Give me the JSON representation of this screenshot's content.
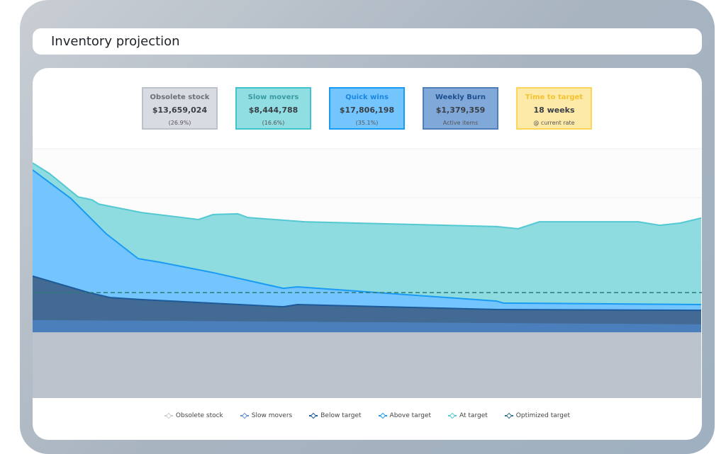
{
  "title": "Inventory projection",
  "kpis": [
    {
      "title": "Obsolete stock",
      "value": "$13,659,024",
      "sub": "(26.9%)",
      "bg": "#d8dbe1",
      "border": "#bcc2cb",
      "tcolor": "#6b7078"
    },
    {
      "title": "Slow movers",
      "value": "$8,444,788",
      "sub": "(16.6%)",
      "bg": "#90dde2",
      "border": "#3fc3cc",
      "tcolor": "#3a9aa3"
    },
    {
      "title": "Quick wins",
      "value": "$17,806,198",
      "sub": "(35.1%)",
      "bg": "#74c4fd",
      "border": "#1a9bf3",
      "tcolor": "#1a86e0"
    },
    {
      "title": "Weekly Burn",
      "value": "$1,379,359",
      "sub": "Active items",
      "bg": "#80a8d8",
      "border": "#4f7fb8",
      "tcolor": "#1d4f8f"
    },
    {
      "title": "Time to target",
      "value": "18 weeks",
      "sub": "@ current rate",
      "bg": "#fde9a8",
      "border": "#fbd65a",
      "tcolor": "#f3c230"
    }
  ],
  "chart_data": {
    "type": "area",
    "xlim": [
      0,
      100
    ],
    "ylim": [
      0,
      100
    ],
    "target_line": 42.3,
    "series": [
      {
        "name": "Obsolete stock",
        "color": "#bdc3cc",
        "line": "#bdc3cc",
        "legend": "#c9ccd1",
        "points": [
          [
            0,
            26.1
          ],
          [
            100,
            26.1
          ]
        ]
      },
      {
        "name": "Slow movers",
        "color": "#4b7fbb",
        "line": "#4b7fbb",
        "legend": "#5b8fd0",
        "points": [
          [
            0,
            31
          ],
          [
            30,
            30.5
          ],
          [
            70,
            29.8
          ],
          [
            100,
            29.3
          ]
        ]
      },
      {
        "name": "Below target",
        "color": "#426a93",
        "line": "#1d5a9a",
        "legend": "#1d5a9a",
        "points": [
          [
            0,
            48.9
          ],
          [
            8.4,
            42.3
          ],
          [
            11.6,
            40.3
          ],
          [
            16.3,
            39.5
          ],
          [
            37.5,
            36.6
          ],
          [
            39.6,
            37.5
          ],
          [
            69.4,
            35.5
          ],
          [
            100,
            35.2
          ]
        ]
      },
      {
        "name": "Above target",
        "color": "#74c4fd",
        "line": "#1a9bf3",
        "legend": "#1a9bf3",
        "points": [
          [
            0,
            91.5
          ],
          [
            5.7,
            80.1
          ],
          [
            11,
            65.9
          ],
          [
            15.8,
            55.9
          ],
          [
            19,
            54.5
          ],
          [
            27,
            50.3
          ],
          [
            37.5,
            44
          ],
          [
            39.6,
            44.6
          ],
          [
            69.4,
            38.9
          ],
          [
            70.4,
            38.1
          ],
          [
            100,
            37.5
          ]
        ]
      },
      {
        "name": "At target",
        "color": "#8edbe0",
        "line": "#54c9d2",
        "legend": "#54c9d2",
        "points": [
          [
            0,
            94.3
          ],
          [
            2.5,
            90.1
          ],
          [
            6.8,
            80.7
          ],
          [
            8.9,
            79.5
          ],
          [
            9.9,
            77.8
          ],
          [
            16.3,
            74.4
          ],
          [
            24.8,
            71.6
          ],
          [
            27,
            73.6
          ],
          [
            30.7,
            73.9
          ],
          [
            32.2,
            72.4
          ],
          [
            40.7,
            70.7
          ],
          [
            69.4,
            68.8
          ],
          [
            72.6,
            67.9
          ],
          [
            75.8,
            70.7
          ],
          [
            90.6,
            70.7
          ],
          [
            93.8,
            69.3
          ],
          [
            96.9,
            70.2
          ],
          [
            100,
            72.2
          ]
        ]
      }
    ],
    "legend": [
      "Obsolete stock",
      "Slow movers",
      "Below target",
      "Above target",
      "At target",
      "Optimized target"
    ],
    "legend_colors": [
      "#c9ccd1",
      "#5b8fd0",
      "#1d5a9a",
      "#1a9bf3",
      "#54c9d2",
      "#2e6f8a"
    ]
  }
}
